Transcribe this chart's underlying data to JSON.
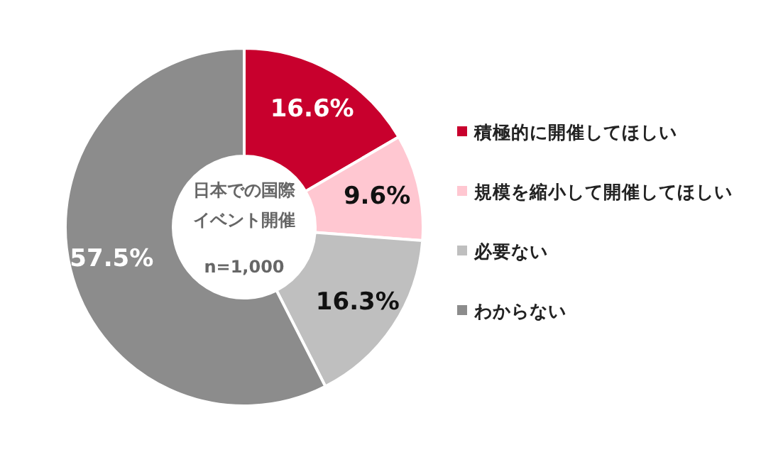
{
  "chart_data": {
    "type": "donut",
    "title": "日本での国際イベント開催",
    "subtitle": "n=1,000",
    "categories": [
      "積極的に開催してほしい",
      "規模を縮小して開催してほしい",
      "必要ない",
      "わからない"
    ],
    "values": [
      16.6,
      9.6,
      16.3,
      57.5
    ],
    "value_labels": [
      "16.6%",
      "9.6%",
      "16.3%",
      "57.5%"
    ],
    "colors": [
      "#c8002d",
      "#ffc7d1",
      "#bfbfbf",
      "#8c8c8c"
    ],
    "legend": "right"
  }
}
